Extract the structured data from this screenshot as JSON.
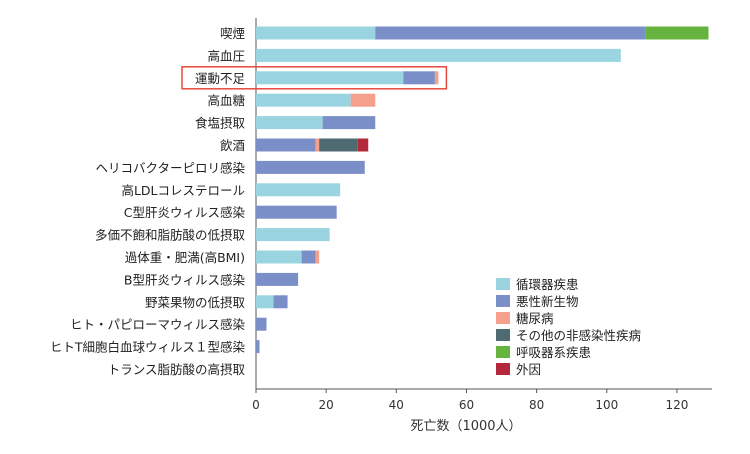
{
  "chart_data": {
    "type": "bar",
    "orientation": "horizontal",
    "stacked": true,
    "categories": [
      "喫煙",
      "高血圧",
      "運動不足",
      "高血糖",
      "食塩摂取",
      "飲酒",
      "ヘリコバクターピロリ感染",
      "高LDLコレステロール",
      "C型肝炎ウィルス感染",
      "多価不飽和脂肪酸の低摂取",
      "過体重・肥満(高BMI)",
      "B型肝炎ウィルス感染",
      "野菜果物の低摂取",
      "ヒト・パピローマウィルス感染",
      "ヒトT細胞白血球ウィルス１型感染",
      "トランス脂肪酸の高摂取"
    ],
    "highlighted_category": "運動不足",
    "highlight_color": "#e8483c",
    "series": [
      {
        "name": "循環器疾患",
        "color": "#9ad4e0",
        "values": [
          34,
          104,
          42,
          27,
          19,
          0,
          0,
          24,
          0,
          21,
          13,
          0,
          5,
          0,
          0,
          0
        ]
      },
      {
        "name": "悪性新生物",
        "color": "#7a8fc8",
        "values": [
          77,
          0,
          9,
          0,
          15,
          17,
          31,
          0,
          23,
          0,
          4,
          12,
          4,
          3,
          1,
          0
        ]
      },
      {
        "name": "糖尿病",
        "color": "#f4a08c",
        "values": [
          0,
          0,
          1,
          7,
          0,
          1,
          0,
          0,
          0,
          0,
          1,
          0,
          0,
          0,
          0,
          0
        ]
      },
      {
        "name": "その他の非感染性疾病",
        "color": "#4e6b72",
        "values": [
          0,
          0,
          0,
          0,
          0,
          11,
          0,
          0,
          0,
          0,
          0,
          0,
          0,
          0,
          0,
          0
        ]
      },
      {
        "name": "呼吸器系疾患",
        "color": "#67b33f",
        "values": [
          18,
          0,
          0,
          0,
          0,
          0,
          0,
          0,
          0,
          0,
          0,
          0,
          0,
          0,
          0,
          0
        ]
      },
      {
        "name": "外因",
        "color": "#b3283a",
        "values": [
          0,
          0,
          0,
          0,
          0,
          3,
          0,
          0,
          0,
          0,
          0,
          0,
          0,
          0,
          0,
          0
        ]
      }
    ],
    "xlabel": "死亡数（1000人）",
    "xlim": [
      0,
      130
    ],
    "xticks": [
      0,
      20,
      40,
      60,
      80,
      100,
      120
    ],
    "grid": false,
    "legend_position": "bottom-right"
  }
}
